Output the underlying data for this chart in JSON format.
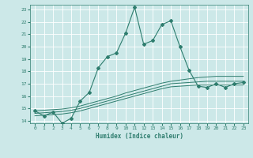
{
  "xlabel": "Humidex (Indice chaleur)",
  "bg_color": "#cce8e8",
  "grid_color": "#ffffff",
  "line_color": "#2e7d6e",
  "xlim": [
    -0.5,
    23.5
  ],
  "ylim": [
    13.8,
    23.4
  ],
  "xticks": [
    0,
    1,
    2,
    3,
    4,
    5,
    6,
    7,
    8,
    9,
    10,
    11,
    12,
    13,
    14,
    15,
    16,
    17,
    18,
    19,
    20,
    21,
    22,
    23
  ],
  "yticks": [
    14,
    15,
    16,
    17,
    18,
    19,
    20,
    21,
    22,
    23
  ],
  "main_line_x": [
    0,
    1,
    2,
    3,
    4,
    5,
    6,
    7,
    8,
    9,
    10,
    11,
    12,
    13,
    14,
    15,
    16,
    17,
    18,
    19,
    20,
    21,
    22,
    23
  ],
  "main_line_y": [
    14.8,
    14.4,
    14.7,
    13.8,
    14.2,
    15.6,
    16.3,
    18.3,
    19.2,
    19.5,
    21.1,
    23.2,
    20.2,
    20.5,
    21.8,
    22.1,
    20.0,
    18.1,
    16.8,
    16.7,
    17.0,
    16.7,
    17.0,
    17.1
  ],
  "line2_x": [
    0,
    1,
    2,
    3,
    4,
    5,
    6,
    7,
    8,
    9,
    10,
    11,
    12,
    13,
    14,
    15,
    16,
    17,
    18,
    19,
    20,
    21,
    22,
    23
  ],
  "line2_y": [
    14.8,
    14.85,
    14.9,
    14.95,
    15.05,
    15.2,
    15.4,
    15.6,
    15.8,
    16.0,
    16.25,
    16.45,
    16.65,
    16.85,
    17.05,
    17.2,
    17.3,
    17.4,
    17.5,
    17.55,
    17.6,
    17.6,
    17.6,
    17.6
  ],
  "line3_x": [
    0,
    1,
    2,
    3,
    4,
    5,
    6,
    7,
    8,
    9,
    10,
    11,
    12,
    13,
    14,
    15,
    16,
    17,
    18,
    19,
    20,
    21,
    22,
    23
  ],
  "line3_y": [
    14.6,
    14.65,
    14.7,
    14.75,
    14.85,
    15.0,
    15.2,
    15.4,
    15.6,
    15.8,
    16.0,
    16.2,
    16.4,
    16.6,
    16.8,
    17.0,
    17.05,
    17.1,
    17.15,
    17.2,
    17.2,
    17.2,
    17.2,
    17.2
  ],
  "line4_x": [
    0,
    1,
    2,
    3,
    4,
    5,
    6,
    7,
    8,
    9,
    10,
    11,
    12,
    13,
    14,
    15,
    16,
    17,
    18,
    19,
    20,
    21,
    22,
    23
  ],
  "line4_y": [
    14.4,
    14.45,
    14.5,
    14.55,
    14.65,
    14.8,
    15.0,
    15.2,
    15.4,
    15.6,
    15.8,
    16.0,
    16.2,
    16.4,
    16.6,
    16.75,
    16.8,
    16.85,
    16.9,
    16.9,
    16.9,
    16.9,
    16.9,
    16.9
  ]
}
